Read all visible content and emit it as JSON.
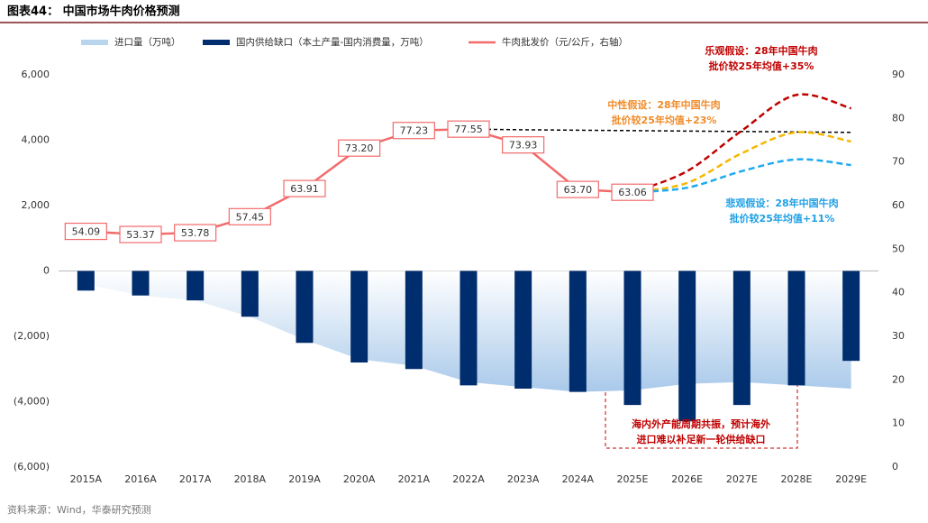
{
  "chart_data": {
    "type": "combo",
    "title": "图表44：  中国市场牛肉价格预测",
    "source": "资料来源：Wind，华泰研究预测",
    "categories": [
      "2015A",
      "2016A",
      "2017A",
      "2018A",
      "2019A",
      "2020A",
      "2021A",
      "2022A",
      "2023A",
      "2024A",
      "2025E",
      "2026E",
      "2027E",
      "2028E",
      "2029E"
    ],
    "series": [
      {
        "name": "进口量（万吨）",
        "type": "area",
        "color": "#b9d5ee",
        "values": [
          -400,
          -750,
          -900,
          -1400,
          -2100,
          -2700,
          -2900,
          -3400,
          -3550,
          -3700,
          -3650,
          -3450,
          -3400,
          -3500,
          -3600
        ]
      },
      {
        "name": "国内供给缺口（本土产量-国内消费量，万吨）",
        "type": "bar",
        "color": "#002d6e",
        "values": [
          -600,
          -750,
          -900,
          -1400,
          -2200,
          -2800,
          -3000,
          -3500,
          -3600,
          -3700,
          -4100,
          -4600,
          -4100,
          -3500,
          -2750
        ]
      },
      {
        "name": "牛肉批发价（元/公斤，右轴）",
        "type": "line",
        "axis": "y2",
        "color": "#f26b6b",
        "values": [
          54.09,
          53.37,
          53.78,
          57.45,
          63.91,
          73.2,
          77.23,
          77.55,
          73.93,
          63.7,
          63.06,
          null,
          null,
          null,
          null
        ],
        "value_labels": [
          "54.09",
          "53.37",
          "53.78",
          "57.45",
          "63.91",
          "73.20",
          "77.23",
          "77.55",
          "73.93",
          "63.70",
          "63.06",
          null,
          null,
          null,
          null
        ]
      },
      {
        "type": "line",
        "axis": "y2",
        "color": "#000000",
        "dashed": true,
        "values": [
          null,
          null,
          null,
          null,
          null,
          null,
          null,
          77.55,
          77.4,
          77.3,
          77.2,
          77.1,
          77.0,
          76.9,
          76.8
        ]
      },
      {
        "type": "line",
        "axis": "y2",
        "color": "#c00000",
        "dashed": true,
        "smooth": true,
        "values": [
          null,
          null,
          null,
          null,
          null,
          null,
          null,
          null,
          null,
          null,
          63.06,
          67.9,
          77.2,
          85.4,
          82.3
        ]
      },
      {
        "type": "line",
        "axis": "y2",
        "color": "#f5b800",
        "dashed": true,
        "smooth": true,
        "values": [
          null,
          null,
          null,
          null,
          null,
          null,
          null,
          null,
          null,
          null,
          63.06,
          65.2,
          72.0,
          76.8,
          74.7
        ]
      },
      {
        "type": "line",
        "axis": "y2",
        "color": "#1eaaf0",
        "dashed": true,
        "smooth": true,
        "values": [
          null,
          null,
          null,
          null,
          null,
          null,
          null,
          null,
          null,
          null,
          63.06,
          64.1,
          67.9,
          70.6,
          69.3
        ]
      }
    ],
    "ylim": [
      -6000,
      6000
    ],
    "yticks": [
      {
        "value": -6000,
        "label": "(6,000)"
      },
      {
        "value": -4000,
        "label": "(4,000)"
      },
      {
        "value": -2000,
        "label": "(2,000)"
      },
      0,
      {
        "value": 2000,
        "label": "2,000"
      },
      {
        "value": 4000,
        "label": "4,000"
      },
      {
        "value": 6000,
        "label": "6,000"
      }
    ],
    "y2lim": [
      0,
      90
    ],
    "y2ticks": [
      0,
      10,
      20,
      30,
      40,
      50,
      60,
      70,
      80,
      90
    ],
    "annotations": [
      {
        "lines": [
          "乐观假设：28年中国牛肉",
          "批价较25年均值+35%"
        ],
        "color": "#c00000"
      },
      {
        "lines": [
          "中性假设：28年中国牛肉",
          "批价较25年均值+23%"
        ],
        "color": "#f08c2a"
      },
      {
        "lines": [
          "悲观假设：28年中国牛肉",
          "批价较25年均值+11%"
        ],
        "color": "#1ea0e6"
      },
      {
        "lines": [
          "海内外产能周期共振，预计海外",
          "进口难以补足新一轮供给缺口"
        ],
        "color": "#c00000"
      }
    ]
  }
}
